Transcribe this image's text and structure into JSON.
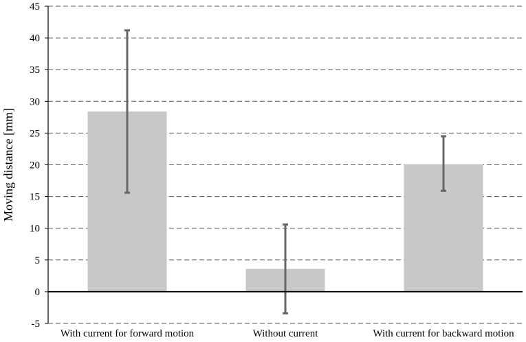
{
  "chart_data": {
    "type": "bar",
    "title": "",
    "xlabel": "",
    "ylabel": "Moving distance [mm]",
    "ylim": [
      -5,
      45
    ],
    "yticks": [
      -5,
      0,
      5,
      10,
      15,
      20,
      25,
      30,
      35,
      40,
      45
    ],
    "grid": "horizontal dashed",
    "legend": "none",
    "categories": [
      "With current for forward motion",
      "Without current",
      "With current for backward motion"
    ],
    "values": [
      28.4,
      3.6,
      20.1
    ],
    "error_low": [
      15.6,
      -3.4,
      15.9
    ],
    "error_high": [
      41.2,
      10.6,
      24.5
    ],
    "colors": {
      "bar": "#c8c8c8",
      "error_bar": "#666666",
      "grid": "#555555",
      "axis": "#000000"
    }
  }
}
